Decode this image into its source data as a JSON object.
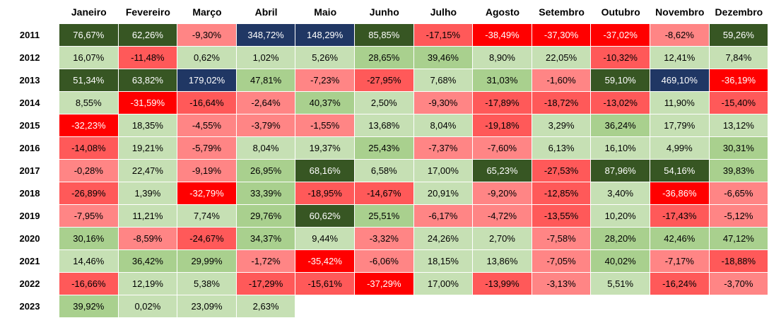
{
  "chart_data": {
    "type": "heatmap",
    "title": "",
    "columns": [
      "Janeiro",
      "Fevereiro",
      "Março",
      "Abril",
      "Maio",
      "Junho",
      "Julho",
      "Agosto",
      "Setembro",
      "Outubro",
      "Novembro",
      "Dezembro"
    ],
    "rows": [
      "2011",
      "2012",
      "2013",
      "2014",
      "2015",
      "2016",
      "2017",
      "2018",
      "2019",
      "2020",
      "2021",
      "2022",
      "2023"
    ],
    "values": [
      [
        76.67,
        62.26,
        -9.3,
        348.72,
        148.29,
        85.85,
        -17.15,
        -38.49,
        -37.3,
        -37.02,
        -8.62,
        59.26
      ],
      [
        16.07,
        -11.48,
        0.62,
        1.02,
        5.26,
        28.65,
        39.46,
        8.9,
        22.05,
        -10.32,
        12.41,
        7.84
      ],
      [
        51.34,
        63.82,
        179.02,
        47.81,
        -7.23,
        -27.95,
        7.68,
        31.03,
        -1.6,
        59.1,
        469.1,
        -36.19
      ],
      [
        8.55,
        -31.59,
        -16.64,
        -2.64,
        40.37,
        2.5,
        -9.3,
        -17.89,
        -18.72,
        -13.02,
        11.9,
        -15.4
      ],
      [
        -32.23,
        18.35,
        -4.55,
        -3.79,
        -1.55,
        13.68,
        8.04,
        -19.18,
        3.29,
        36.24,
        17.79,
        13.12
      ],
      [
        -14.08,
        19.21,
        -5.79,
        8.04,
        19.37,
        25.43,
        -7.37,
        -7.6,
        6.13,
        16.1,
        4.99,
        30.31
      ],
      [
        -0.28,
        22.47,
        -9.19,
        26.95,
        68.16,
        6.58,
        17.0,
        65.23,
        -27.53,
        87.96,
        54.16,
        39.83
      ],
      [
        -26.89,
        1.39,
        -32.79,
        33.39,
        -18.95,
        -14.67,
        20.91,
        -9.2,
        -12.85,
        3.4,
        -36.86,
        -6.65
      ],
      [
        -7.95,
        11.21,
        7.74,
        29.76,
        60.62,
        25.51,
        -6.17,
        -4.72,
        -13.55,
        10.2,
        -17.43,
        -5.12
      ],
      [
        30.16,
        -8.59,
        -24.67,
        34.37,
        9.44,
        -3.32,
        24.26,
        2.7,
        -7.58,
        28.2,
        42.46,
        47.12
      ],
      [
        14.46,
        36.42,
        29.99,
        -1.72,
        -35.42,
        -6.06,
        18.15,
        13.86,
        -7.05,
        40.02,
        -7.17,
        -18.88
      ],
      [
        -16.66,
        12.19,
        5.38,
        -17.29,
        -15.61,
        -37.29,
        17.0,
        -13.99,
        -3.13,
        5.51,
        -16.24,
        -3.7
      ],
      [
        39.92,
        0.02,
        23.09,
        2.63,
        null,
        null,
        null,
        null,
        null,
        null,
        null,
        null
      ]
    ],
    "value_suffix": "%",
    "decimal_separator": ",",
    "colors": {
      "pos_light": "#c6e0b4",
      "pos_mid": "#a9d08e",
      "pos_dark": "#375623",
      "pos_extreme": "#203764",
      "neg_light": "#ff8585",
      "neg_mid": "#ff5959",
      "neg_dark": "#ff0000",
      "text_default": "#000000",
      "text_on_dark": "#ffffff"
    }
  }
}
